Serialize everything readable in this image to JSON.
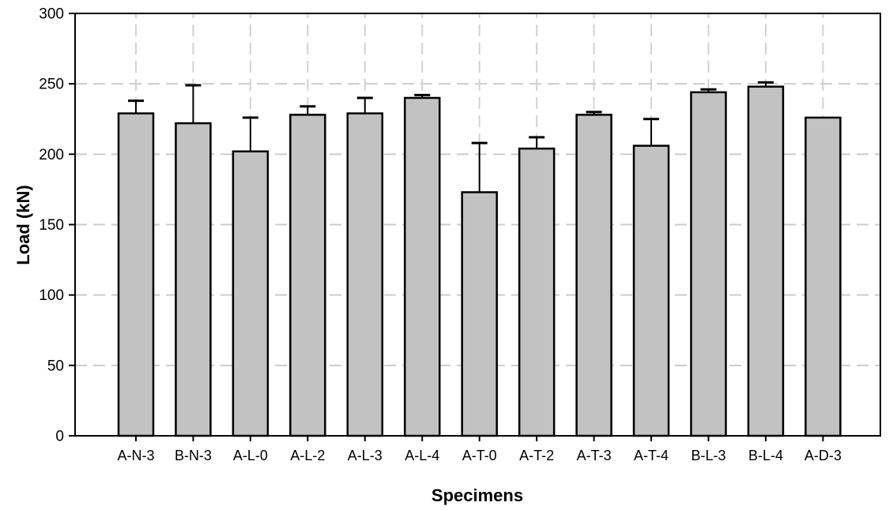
{
  "chart_data": {
    "type": "bar",
    "title": "",
    "xlabel": "Specimens",
    "ylabel": "Load (kN)",
    "categories": [
      "A-N-3",
      "B-N-3",
      "A-L-0",
      "A-L-2",
      "A-L-3",
      "A-L-4",
      "A-T-0",
      "A-T-2",
      "A-T-3",
      "A-T-4",
      "B-L-3",
      "B-L-4",
      "A-D-3"
    ],
    "values": [
      229,
      222,
      202,
      228,
      229,
      240,
      173,
      204,
      228,
      206,
      244,
      248,
      226
    ],
    "error_plus": [
      9,
      27,
      24,
      6,
      11,
      2,
      35,
      8,
      2,
      19,
      2,
      3,
      0
    ],
    "ylim": [
      0,
      300
    ],
    "yticks": [
      0,
      50,
      100,
      150,
      200,
      250,
      300
    ],
    "grid": "dashed, horizontal and vertical",
    "legend_position": "none",
    "bar_fill_color": "#c2c2c2",
    "bar_border_color": "#000000",
    "gridline_color": "#cccccc",
    "axis_color": "#000000",
    "background_color": "#ffffff"
  }
}
